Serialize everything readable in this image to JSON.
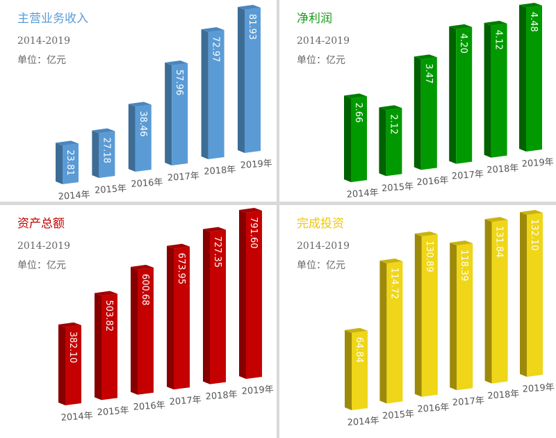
{
  "chart_data": [
    {
      "type": "bar",
      "title": "主营业务收入",
      "subtitle": "2014-2019",
      "unit": "单位：亿元",
      "categories": [
        "2014年",
        "2015年",
        "2016年",
        "2017年",
        "2018年",
        "2019年"
      ],
      "values": [
        23.81,
        27.18,
        38.46,
        57.96,
        72.97,
        81.93
      ],
      "labels": [
        "23.81",
        "27.18",
        "38.46",
        "57.96",
        "72.97",
        "81.93"
      ],
      "colors": {
        "title": "#5b9bd5",
        "front": "#5b9bd5",
        "side": "#3d6c95",
        "top": "#4a86bf"
      }
    },
    {
      "type": "bar",
      "title": "净利润",
      "subtitle": "2014-2019",
      "unit": "单位：亿元",
      "categories": [
        "2014年",
        "2015年",
        "2016年",
        "2017年",
        "2018年",
        "2019年"
      ],
      "values": [
        2.66,
        2.12,
        3.47,
        4.2,
        4.12,
        4.48
      ],
      "labels": [
        "2.66",
        "2.12",
        "3.47",
        "4.20",
        "4.12",
        "4.48"
      ],
      "colors": {
        "title": "#1a9a1a",
        "front": "#009a00",
        "side": "#006200",
        "top": "#007d00"
      }
    },
    {
      "type": "bar",
      "title": "资产总额",
      "subtitle": "2014-2019",
      "unit": "单位：亿元",
      "categories": [
        "2014年",
        "2015年",
        "2016年",
        "2017年",
        "2018年",
        "2019年"
      ],
      "values": [
        382.1,
        503.82,
        600.68,
        673.95,
        727.35,
        791.6
      ],
      "labels": [
        "382.10",
        "503.82",
        "600.68",
        "673.95",
        "727.35",
        "791.60"
      ],
      "colors": {
        "title": "#c00000",
        "front": "#c40000",
        "side": "#870000",
        "top": "#a30000"
      }
    },
    {
      "type": "bar",
      "title": "完成投资",
      "subtitle": "2014-2019",
      "unit": "单位：亿元",
      "categories": [
        "2014年",
        "2015年",
        "2016年",
        "2017年",
        "2018年",
        "2019年"
      ],
      "values": [
        64.84,
        114.72,
        130.89,
        118.39,
        131.84,
        132.1
      ],
      "labels": [
        "64.84",
        "114.72",
        "130.89",
        "118.39",
        "131.84",
        "132.10"
      ],
      "colors": {
        "title": "#f0c800",
        "front": "#efd618",
        "side": "#9e8a0a",
        "top": "#c9b312"
      }
    }
  ]
}
